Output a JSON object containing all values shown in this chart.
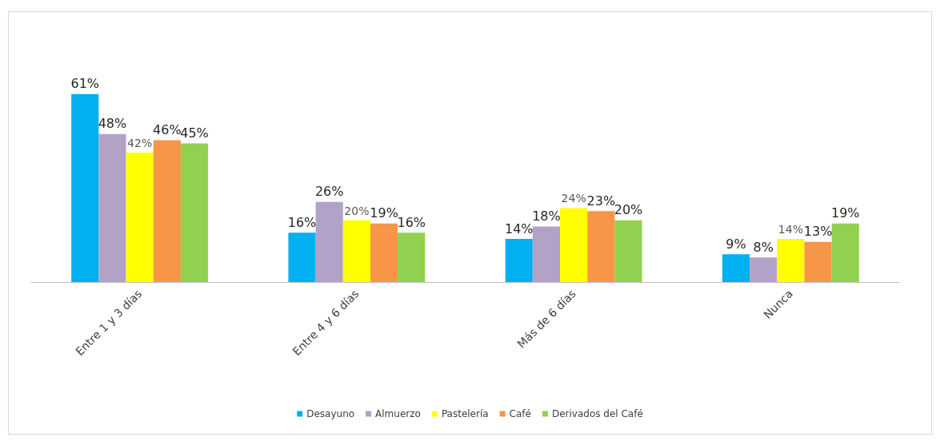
{
  "chart_data": {
    "type": "bar",
    "categories": [
      "Entre 1 y 3 días",
      "Entre 4 y 6 días",
      "Más de 6 días",
      "Nunca"
    ],
    "series": [
      {
        "name": "Desayuno",
        "color": "#00b0f0",
        "values": [
          61,
          16,
          14,
          9
        ],
        "value_labels": [
          "61%",
          "16%",
          "14%",
          "9%"
        ]
      },
      {
        "name": "Almuerzo",
        "color": "#b3a2c7",
        "values": [
          48,
          26,
          18,
          8
        ],
        "value_labels": [
          "48%",
          "26%",
          "18%",
          "8%"
        ]
      },
      {
        "name": "Pastelería",
        "color": "#ffff00",
        "values": [
          42,
          20,
          24,
          14
        ],
        "value_labels": [
          "42%",
          "20%",
          "24%",
          "14%"
        ]
      },
      {
        "name": "Café",
        "color": "#f79646",
        "values": [
          46,
          19,
          23,
          13
        ],
        "value_labels": [
          "46%",
          "19%",
          "23%",
          "13%"
        ]
      },
      {
        "name": "Derivados del Café",
        "color": "#92d050",
        "values": [
          45,
          16,
          20,
          19
        ],
        "value_labels": [
          "45%",
          "16%",
          "20%",
          "19%"
        ]
      }
    ],
    "legend": "bottom"
  }
}
